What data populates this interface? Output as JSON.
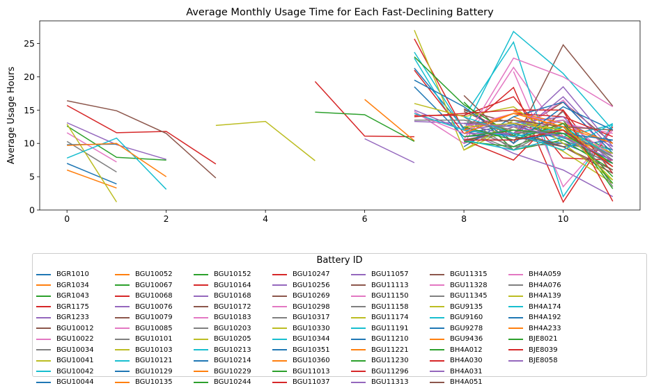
{
  "chart_data": {
    "type": "line",
    "title": "Average Monthly Usage Time for Each Fast-Declining Battery",
    "xlabel": "",
    "ylabel": "Average Usage Hours",
    "xlim": [
      -0.55,
      11.55
    ],
    "ylim": [
      0,
      28.4
    ],
    "xticks": [
      0,
      2,
      4,
      6,
      8,
      10
    ],
    "yticks": [
      0,
      5,
      10,
      15,
      20,
      25
    ],
    "grid": false,
    "legend": {
      "title": "Battery ID",
      "placement": "below",
      "columns": 8
    },
    "palette": [
      "#1f77b4",
      "#ff7f0e",
      "#2ca02c",
      "#d62728",
      "#9467bd",
      "#8c564b",
      "#e377c2",
      "#7f7f7f",
      "#bcbd22",
      "#17becf"
    ],
    "series": [
      {
        "name": "BGR1010",
        "x": [
          0,
          1
        ],
        "y": [
          7.0,
          3.9
        ]
      },
      {
        "name": "BGR1034",
        "x": [
          0,
          1
        ],
        "y": [
          6.0,
          3.3
        ]
      },
      {
        "name": "BGR1043",
        "x": [
          0,
          1,
          2
        ],
        "y": [
          12.6,
          7.9,
          7.5
        ]
      },
      {
        "name": "BGR1175",
        "x": [
          0,
          1,
          2,
          3
        ],
        "y": [
          15.7,
          11.6,
          11.8,
          6.9
        ]
      },
      {
        "name": "BGR1233",
        "x": [
          0,
          1,
          2
        ],
        "y": [
          13.1,
          9.8,
          7.6
        ]
      },
      {
        "name": "BGU10012",
        "x": [
          0,
          1,
          2,
          3
        ],
        "y": [
          16.4,
          14.9,
          11.5,
          4.8
        ]
      },
      {
        "name": "BGU10022",
        "x": [
          0,
          1
        ],
        "y": [
          11.6,
          7.2
        ]
      },
      {
        "name": "BGU10034",
        "x": [
          0,
          1
        ],
        "y": [
          10.3,
          5.7
        ]
      },
      {
        "name": "BGU10041",
        "x": [
          0,
          1
        ],
        "y": [
          12.9,
          1.2
        ]
      },
      {
        "name": "BGU10042",
        "x": [
          0,
          1,
          2
        ],
        "y": [
          7.8,
          10.8,
          3.1
        ]
      },
      {
        "name": "BGU10044",
        "x": [
          0,
          1
        ],
        "y": [
          9.8,
          9.9
        ]
      },
      {
        "name": "BGU10052",
        "x": [
          0,
          1,
          2
        ],
        "y": [
          9.7,
          10.0,
          5.0
        ]
      },
      {
        "name": "BGU10067",
        "x": [
          8,
          9,
          10,
          11
        ],
        "y": [
          10.5,
          11.5,
          12.0,
          9.0
        ]
      },
      {
        "name": "BGU10068",
        "x": [
          5,
          6,
          7
        ],
        "y": [
          19.3,
          11.1,
          11.0
        ]
      },
      {
        "name": "BGU10076",
        "x": [
          6,
          7
        ],
        "y": [
          10.7,
          7.1
        ]
      },
      {
        "name": "BGU10079",
        "x": [
          8,
          9,
          10,
          11
        ],
        "y": [
          15.0,
          13.0,
          11.0,
          9.0
        ]
      },
      {
        "name": "BGU10085",
        "x": [
          7,
          8,
          9,
          10,
          11
        ],
        "y": [
          14.8,
          10.0,
          21.4,
          11.0,
          7.0
        ]
      },
      {
        "name": "BGU10101",
        "x": [
          8,
          9,
          10,
          11
        ],
        "y": [
          13.0,
          13.5,
          11.5,
          8.0
        ]
      },
      {
        "name": "BGU10103",
        "x": [
          3,
          4,
          5
        ],
        "y": [
          12.7,
          13.3,
          7.4
        ]
      },
      {
        "name": "BGU10121",
        "x": [
          8,
          9,
          10,
          11
        ],
        "y": [
          14.0,
          25.2,
          2.0,
          12.8
        ]
      },
      {
        "name": "BGU10129",
        "x": [
          7,
          8,
          9,
          10,
          11
        ],
        "y": [
          21.3,
          12.3,
          11.0,
          10.0,
          7.0
        ]
      },
      {
        "name": "BGU10135",
        "x": [
          6,
          7
        ],
        "y": [
          16.6,
          10.4
        ]
      },
      {
        "name": "BGU10152",
        "x": [
          5,
          6,
          7
        ],
        "y": [
          14.7,
          14.3,
          10.3
        ]
      },
      {
        "name": "BGU10164",
        "x": [
          7,
          8,
          9,
          10,
          11
        ],
        "y": [
          25.7,
          12.0,
          18.4,
          1.2,
          12.5
        ]
      },
      {
        "name": "BGU10168",
        "x": [
          8,
          9,
          10,
          11
        ],
        "y": [
          12.0,
          8.5,
          6.0,
          2.0
        ]
      },
      {
        "name": "BGU10172",
        "x": [
          8,
          9,
          10,
          11
        ],
        "y": [
          17.2,
          10.0,
          24.8,
          15.6
        ]
      },
      {
        "name": "BGU10183",
        "x": [
          9,
          10,
          11
        ],
        "y": [
          20.8,
          3.5,
          12.0
        ]
      },
      {
        "name": "BGU10203",
        "x": [
          8,
          9,
          10,
          11
        ],
        "y": [
          12.0,
          9.0,
          13.0,
          7.5
        ]
      },
      {
        "name": "BGU10205",
        "x": [
          8,
          9,
          10,
          11
        ],
        "y": [
          9.0,
          12.5,
          8.8,
          4.0
        ]
      },
      {
        "name": "BGU10213",
        "x": [
          7,
          8,
          9,
          10,
          11
        ],
        "y": [
          23.7,
          12.0,
          26.8,
          20.5,
          12.0
        ]
      },
      {
        "name": "BGU10214",
        "x": [
          8,
          9,
          10,
          11
        ],
        "y": [
          11.5,
          12.8,
          10.5,
          7.5
        ]
      },
      {
        "name": "BGU10229",
        "x": [
          9,
          10,
          11
        ],
        "y": [
          14.0,
          11.0,
          8.5
        ]
      },
      {
        "name": "BGU10244",
        "x": [
          8,
          9,
          10,
          11
        ],
        "y": [
          16.2,
          9.0,
          10.5,
          6.0
        ]
      },
      {
        "name": "BGU10247",
        "x": [
          8,
          9,
          10,
          11
        ],
        "y": [
          10.5,
          7.5,
          15.0,
          5.5
        ]
      },
      {
        "name": "BGU10256",
        "x": [
          8,
          9,
          10,
          11
        ],
        "y": [
          10.0,
          12.5,
          13.5,
          9.5
        ]
      },
      {
        "name": "BGU10269",
        "x": [
          8,
          9,
          10,
          11
        ],
        "y": [
          14.8,
          11.5,
          16.2,
          10.0
        ]
      },
      {
        "name": "BGU10298",
        "x": [
          8,
          9,
          10,
          11
        ],
        "y": [
          12.0,
          11.2,
          16.5,
          8.0
        ]
      },
      {
        "name": "BGU10317",
        "x": [
          8,
          9,
          10,
          11
        ],
        "y": [
          12.5,
          9.5,
          10.0,
          8.5
        ]
      },
      {
        "name": "BGU10330",
        "x": [
          8,
          9,
          10,
          11
        ],
        "y": [
          13.5,
          12.0,
          11.5,
          7.0
        ]
      },
      {
        "name": "BGU10344",
        "x": [
          8,
          9,
          10,
          11
        ],
        "y": [
          13.0,
          13.5,
          10.8,
          9.0
        ]
      },
      {
        "name": "BGU10351",
        "x": [
          8,
          9,
          10,
          11
        ],
        "y": [
          9.5,
          14.0,
          16.2,
          8.5
        ]
      },
      {
        "name": "BGU10360",
        "x": [
          9,
          10,
          11
        ],
        "y": [
          15.0,
          12.0,
          6.5
        ]
      },
      {
        "name": "BGU11013",
        "x": [
          8,
          9,
          10,
          11
        ],
        "y": [
          10.3,
          9.5,
          12.5,
          5.0
        ]
      },
      {
        "name": "BGU11037",
        "x": [
          7,
          8,
          9,
          10,
          11
        ],
        "y": [
          14.2,
          14.2,
          17.0,
          7.8,
          7.5
        ]
      },
      {
        "name": "BGU11057",
        "x": [
          7,
          8,
          9,
          10,
          11
        ],
        "y": [
          13.3,
          13.0,
          11.0,
          17.0,
          9.0
        ]
      },
      {
        "name": "BGU11113",
        "x": [
          8,
          9,
          10,
          11
        ],
        "y": [
          15.2,
          11.0,
          9.5,
          5.5
        ]
      },
      {
        "name": "BGU11150",
        "x": [
          8,
          9,
          10,
          11
        ],
        "y": [
          12.5,
          14.5,
          13.0,
          11.5
        ]
      },
      {
        "name": "BGU11158",
        "x": [
          8,
          9,
          10,
          11
        ],
        "y": [
          14.0,
          9.0,
          14.8,
          3.5
        ]
      },
      {
        "name": "BGU11174",
        "x": [
          7,
          8,
          9,
          10,
          11
        ],
        "y": [
          27.0,
          9.0,
          13.5,
          12.0,
          8.5
        ]
      },
      {
        "name": "BGU11191",
        "x": [
          7,
          8,
          9,
          10,
          11
        ],
        "y": [
          22.8,
          10.5,
          9.0,
          11.0,
          12.8
        ]
      },
      {
        "name": "BGU11210",
        "x": [
          7,
          8,
          9,
          10,
          11
        ],
        "y": [
          18.5,
          11.0,
          11.5,
          9.5,
          10.5
        ]
      },
      {
        "name": "BGU11221",
        "x": [
          9,
          10,
          11
        ],
        "y": [
          14.8,
          13.0,
          10.0
        ]
      },
      {
        "name": "BGU11230",
        "x": [
          7,
          8,
          9,
          10,
          11
        ],
        "y": [
          23.0,
          15.8,
          11.2,
          13.5,
          3.2
        ]
      },
      {
        "name": "BGU11296",
        "x": [
          7,
          8,
          9,
          10,
          11
        ],
        "y": [
          21.0,
          11.5,
          14.5,
          14.0,
          11.0
        ]
      },
      {
        "name": "BGU11313",
        "x": [
          7,
          8,
          9,
          10,
          11
        ],
        "y": [
          15.0,
          12.0,
          13.0,
          14.0,
          7.0
        ]
      },
      {
        "name": "BGU11315",
        "x": [
          8,
          9,
          10,
          11
        ],
        "y": [
          10.5,
          12.0,
          9.5,
          6.0
        ]
      },
      {
        "name": "BGU11328",
        "x": [
          7,
          8,
          9,
          10,
          11
        ],
        "y": [
          14.5,
          11.5,
          11.5,
          13.5,
          8.0
        ]
      },
      {
        "name": "BGU11345",
        "x": [
          7,
          8,
          9,
          10,
          11
        ],
        "y": [
          13.5,
          13.5,
          12.0,
          11.0,
          6.5
        ]
      },
      {
        "name": "BGU9135",
        "x": [
          7,
          8,
          9,
          10,
          11
        ],
        "y": [
          16.0,
          14.0,
          15.5,
          10.0,
          4.5
        ]
      },
      {
        "name": "BGU9160",
        "x": [
          7,
          8,
          9,
          10,
          11
        ],
        "y": [
          14.5,
          12.0,
          11.0,
          12.5,
          8.0
        ]
      },
      {
        "name": "BGU9278",
        "x": [
          7,
          8,
          9,
          10,
          11
        ],
        "y": [
          19.5,
          15.5,
          10.0,
          15.5,
          12.0
        ]
      },
      {
        "name": "BGU9436",
        "x": [
          8,
          9,
          10,
          11
        ],
        "y": [
          12.0,
          14.5,
          12.5,
          10.0
        ]
      },
      {
        "name": "BH4A012",
        "x": [
          8,
          9,
          10,
          11
        ],
        "y": [
          12.5,
          10.5,
          13.0,
          4.0
        ]
      },
      {
        "name": "BH4A030",
        "x": [
          7,
          8,
          9,
          10,
          11
        ],
        "y": [
          14.0,
          14.5,
          15.0,
          15.0,
          1.3
        ]
      },
      {
        "name": "BH4A031",
        "x": [
          8,
          9,
          10,
          11
        ],
        "y": [
          11.5,
          11.5,
          18.5,
          9.5
        ]
      },
      {
        "name": "BH4A051",
        "x": [
          8,
          9,
          10,
          11
        ],
        "y": [
          13.0,
          13.5,
          12.5,
          12.0
        ]
      },
      {
        "name": "BH4A059",
        "x": [
          8,
          9,
          10,
          11
        ],
        "y": [
          10.5,
          22.8,
          20.0,
          15.5
        ]
      },
      {
        "name": "BH4A076",
        "x": [
          8,
          9,
          10,
          11
        ],
        "y": [
          13.5,
          11.5,
          12.0,
          8.0
        ]
      },
      {
        "name": "BH4A139",
        "x": [
          8,
          9,
          10,
          11
        ],
        "y": [
          12.5,
          13.0,
          12.0,
          4.5
        ]
      },
      {
        "name": "BH4A174",
        "x": [
          8,
          9,
          10,
          11
        ],
        "y": [
          14.0,
          11.5,
          9.0,
          13.0
        ]
      },
      {
        "name": "BH4A192",
        "x": [
          8,
          9,
          10,
          11
        ],
        "y": [
          10.5,
          10.5,
          11.5,
          10.5
        ]
      },
      {
        "name": "BH4A233",
        "x": [
          8,
          9,
          10,
          11
        ],
        "y": [
          11.5,
          14.5,
          12.5,
          6.5
        ]
      },
      {
        "name": "BJE8021",
        "x": [
          8,
          9,
          10,
          11
        ],
        "y": [
          11.0,
          12.0,
          11.5,
          7.0
        ]
      },
      {
        "name": "BJE8039",
        "x": [
          8,
          9,
          10,
          11
        ],
        "y": [
          10.5,
          10.5,
          12.0,
          6.5
        ]
      },
      {
        "name": "BJE8058",
        "x": [
          8,
          9,
          10,
          11
        ],
        "y": [
          13.0,
          12.5,
          11.0,
          7.5
        ]
      }
    ]
  }
}
